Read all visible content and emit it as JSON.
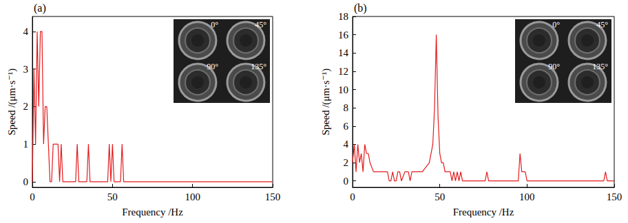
{
  "chart_data": [
    {
      "type": "line",
      "title": "(a)",
      "x_label": "Frequency /Hz",
      "y_label": "Speed /(μm·s⁻¹)",
      "color": "#e41a1c",
      "x": [
        0,
        1,
        2,
        3,
        4,
        5,
        6,
        7,
        8,
        9,
        10,
        11,
        12,
        13,
        16,
        17,
        18,
        19,
        20,
        27,
        28,
        29,
        34,
        35,
        36,
        47,
        48,
        49,
        50,
        51,
        55,
        56,
        57,
        150
      ],
      "values": [
        0,
        3,
        1,
        4,
        2,
        4,
        4,
        1,
        2,
        2,
        1,
        0,
        0,
        1,
        1,
        0,
        1,
        0,
        0,
        0,
        1,
        0,
        0,
        1,
        0,
        0,
        1,
        0,
        1,
        0,
        0,
        1,
        0,
        0
      ],
      "xlim": [
        0,
        150
      ],
      "xticks": [
        0,
        50,
        100,
        150
      ],
      "ylim": [
        -0.15,
        4.4
      ],
      "yticks": [
        0,
        1,
        2,
        3,
        4
      ],
      "annotations": [
        "0°",
        "45°",
        "90°",
        "135°"
      ]
    },
    {
      "type": "line",
      "title": "(b)",
      "x_label": "Frequency /Hz",
      "y_label": "Speed /(μm·s⁻¹)",
      "color": "#e41a1c",
      "x": [
        0,
        1,
        2,
        3,
        4,
        5,
        6,
        7,
        8,
        9,
        10,
        12,
        15,
        18,
        20,
        21,
        22,
        23,
        24,
        25,
        26,
        27,
        28,
        30,
        32,
        33,
        34,
        35,
        36,
        38,
        40,
        42,
        44,
        45,
        46,
        47,
        48,
        49,
        50,
        51,
        52,
        53,
        55,
        56,
        57,
        58,
        59,
        60,
        61,
        62,
        63,
        64,
        76,
        77,
        78,
        95,
        96,
        97,
        98,
        99,
        100,
        144,
        145,
        146,
        150
      ],
      "values": [
        2,
        4,
        1,
        4,
        2,
        3,
        1,
        4,
        3,
        3,
        2,
        1,
        1,
        1,
        1,
        0,
        0,
        1,
        0,
        0,
        1,
        1,
        0,
        1,
        1,
        0,
        1,
        1,
        1,
        1,
        1,
        1.5,
        2,
        3,
        4,
        8,
        16,
        7,
        3,
        2,
        2,
        1,
        1,
        1,
        0,
        1,
        0,
        1,
        0,
        1,
        0,
        0,
        0,
        1,
        0,
        0,
        3,
        1,
        1,
        1,
        0,
        0,
        1,
        0,
        0
      ],
      "xlim": [
        0,
        150
      ],
      "xticks": [
        0,
        50,
        100,
        150
      ],
      "ylim": [
        -0.7,
        18
      ],
      "yticks": [
        0,
        2,
        4,
        6,
        8,
        10,
        12,
        14,
        16,
        18
      ],
      "annotations": [
        "0°",
        "45°",
        "90°",
        "135°"
      ]
    }
  ]
}
